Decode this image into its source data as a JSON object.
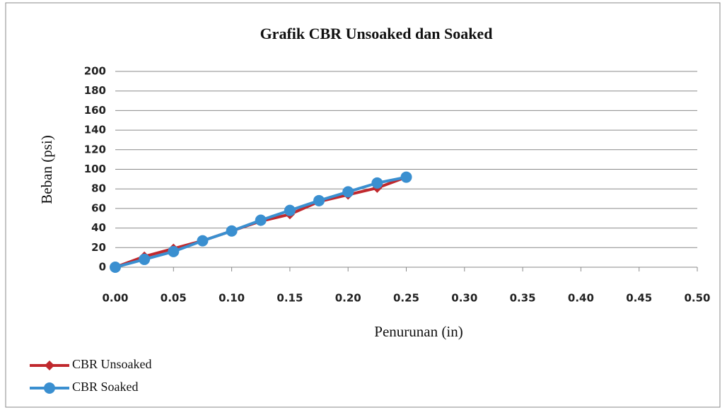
{
  "chart_data": {
    "type": "line",
    "title": "Grafik CBR Unsoaked dan Soaked",
    "x_label": "Penurunan (in)",
    "y_label": "Beban (psi)",
    "x": [
      0,
      0.025,
      0.05,
      0.075,
      0.1,
      0.125,
      0.15,
      0.175,
      0.2,
      0.225,
      0.25
    ],
    "series": [
      {
        "name": "CBR Unsoaked",
        "color": "#c0282d",
        "marker": "diamond",
        "values": [
          0,
          11,
          19,
          27,
          37,
          47,
          54,
          67,
          74,
          81,
          92
        ]
      },
      {
        "name": "CBR Soaked",
        "color": "#3a8fd0",
        "marker": "circle",
        "values": [
          0,
          8,
          16,
          27,
          37,
          48,
          58,
          68,
          77,
          86,
          92
        ]
      }
    ],
    "xlim": [
      0,
      0.5
    ],
    "xticks": [
      {
        "value": 0,
        "label": "0.00"
      },
      {
        "value": 0.05,
        "label": "0.05"
      },
      {
        "value": 0.1,
        "label": "0.10"
      },
      {
        "value": 0.15,
        "label": "0.15"
      },
      {
        "value": 0.2,
        "label": "0.20"
      },
      {
        "value": 0.25,
        "label": "0.25"
      },
      {
        "value": 0.3,
        "label": "0.30"
      },
      {
        "value": 0.35,
        "label": "0.35"
      },
      {
        "value": 0.4,
        "label": "0.40"
      },
      {
        "value": 0.45,
        "label": "0.45"
      },
      {
        "value": 0.5,
        "label": "0.50"
      }
    ],
    "ylim": [
      0,
      200
    ],
    "yticks": [
      0,
      20,
      40,
      60,
      80,
      100,
      120,
      140,
      160,
      180,
      200
    ],
    "grid": true,
    "legend": "bottom-left"
  }
}
